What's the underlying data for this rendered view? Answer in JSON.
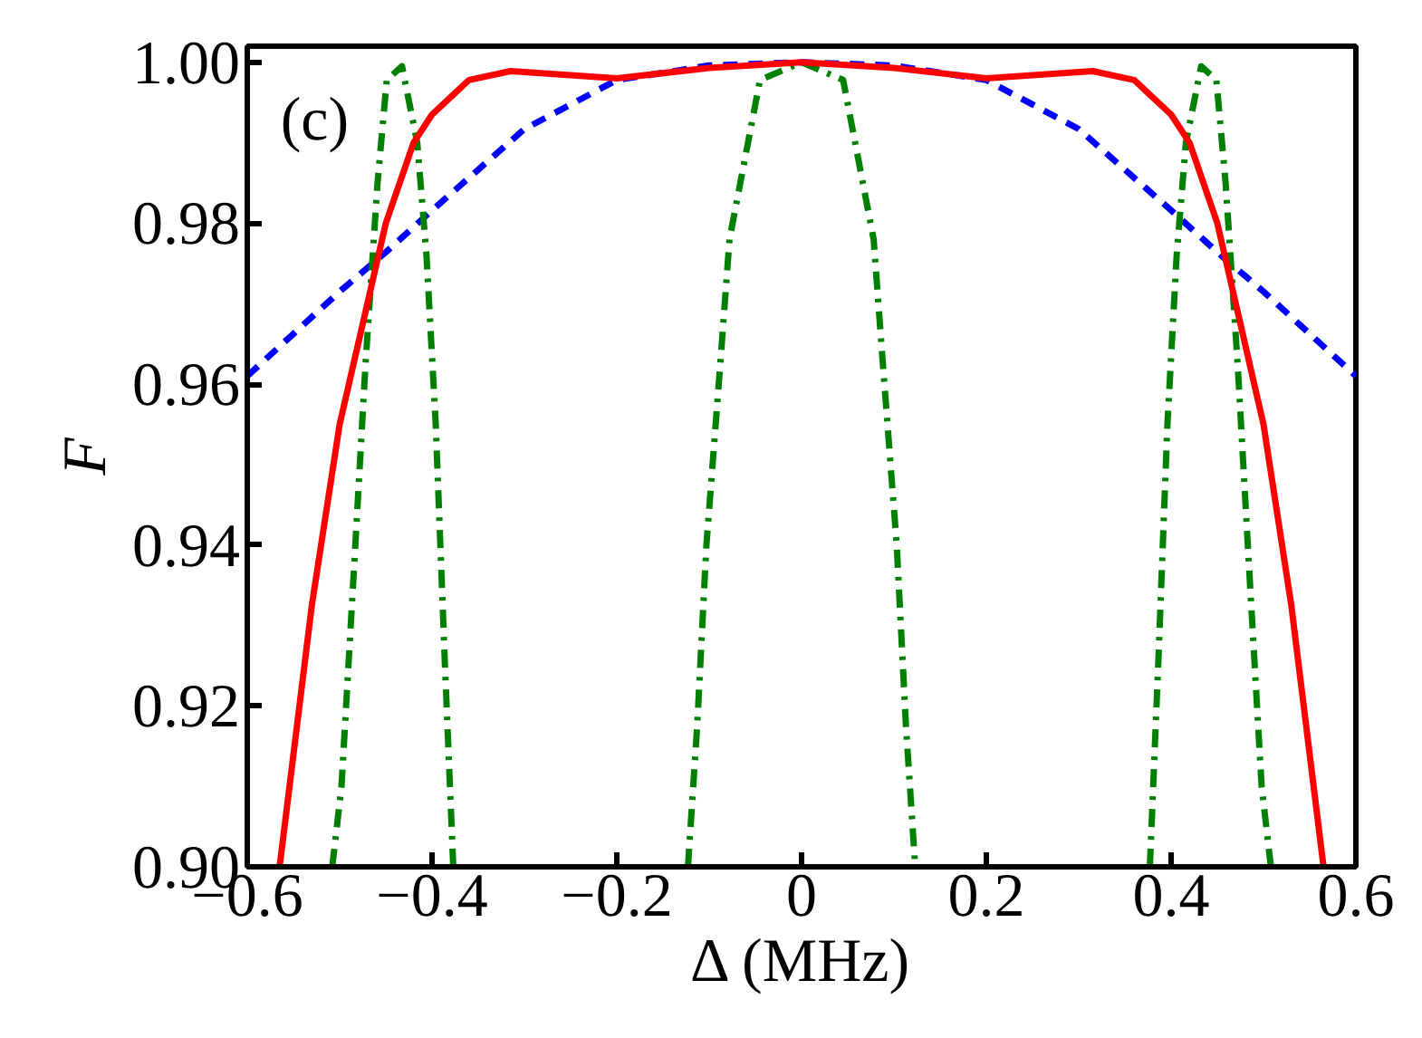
{
  "chart_data": {
    "type": "line",
    "xlabel": "Δ (MHz)",
    "ylabel": "F",
    "annotations": [
      "(c)"
    ],
    "xlim": [
      -0.6,
      0.6
    ],
    "ylim": [
      0.9,
      1.002
    ],
    "xticks": [
      {
        "value": -0.6,
        "label": "−0.6"
      },
      {
        "value": -0.4,
        "label": "−0.4"
      },
      {
        "value": -0.2,
        "label": "−0.2"
      },
      0,
      0.2,
      0.4,
      0.6
    ],
    "yticks": [
      {
        "value": 0.9,
        "label": "0.90"
      },
      {
        "value": 0.92,
        "label": "0.92"
      },
      {
        "value": 0.94,
        "label": "0.94"
      },
      {
        "value": 0.96,
        "label": "0.96"
      },
      {
        "value": 0.98,
        "label": "0.98"
      },
      {
        "value": 1.0,
        "label": "1.00"
      }
    ],
    "grid": false,
    "series": [
      {
        "color": "#0000ff",
        "line_style": "dashed",
        "x": [
          -0.6,
          -0.5,
          -0.45,
          -0.4,
          -0.3,
          -0.2,
          -0.1,
          0,
          0.1,
          0.2,
          0.3,
          0.4,
          0.45,
          0.5,
          0.6
        ],
        "values": [
          0.961,
          0.9715,
          0.9764,
          0.9816,
          0.9917,
          0.9978,
          0.9996,
          1.0,
          0.9996,
          0.9978,
          0.9917,
          0.9816,
          0.9764,
          0.9715,
          0.961
        ]
      },
      {
        "color": "#008000",
        "line_style": "dashdot",
        "x": [
          -0.508,
          -0.498,
          -0.485,
          -0.472,
          -0.459,
          -0.449,
          -0.4325,
          -0.416,
          -0.406,
          -0.396,
          -0.386,
          -0.377,
          -0.25,
          -0.123,
          -0.113,
          -0.103,
          -0.088,
          -0.078,
          -0.045,
          0,
          0.045,
          0.078,
          0.088,
          0.103,
          0.113,
          0.123,
          0.25,
          0.377,
          0.386,
          0.396,
          0.406,
          0.416,
          0.4325,
          0.449,
          0.459,
          0.472,
          0.485,
          0.498,
          0.508
        ],
        "values": [
          0.9,
          0.91,
          0.936,
          0.9625,
          0.985,
          0.9978,
          0.9995,
          0.99,
          0.976,
          0.955,
          0.925,
          0.9,
          null,
          0.9,
          0.9175,
          0.94,
          0.9625,
          0.978,
          0.9978,
          1.0,
          0.9978,
          0.978,
          0.9625,
          0.94,
          0.9175,
          0.9,
          null,
          0.9,
          0.925,
          0.955,
          0.976,
          0.99,
          0.9995,
          0.9978,
          0.985,
          0.9625,
          0.936,
          0.91,
          0.9
        ]
      },
      {
        "color": "#ff0000",
        "line_style": "solid",
        "x": [
          -0.565,
          -0.53,
          -0.5,
          -0.45,
          -0.42,
          -0.4,
          -0.36,
          -0.315,
          -0.2,
          -0.1,
          0,
          0.1,
          0.2,
          0.315,
          0.36,
          0.4,
          0.42,
          0.45,
          0.5,
          0.53,
          0.565
        ],
        "values": [
          0.9,
          0.9326,
          0.955,
          0.98,
          0.99,
          0.9935,
          0.9978,
          0.9989,
          0.998,
          0.9993,
          1.0,
          0.9993,
          0.998,
          0.9989,
          0.9978,
          0.9935,
          0.99,
          0.98,
          0.955,
          0.9326,
          0.9
        ]
      }
    ]
  }
}
